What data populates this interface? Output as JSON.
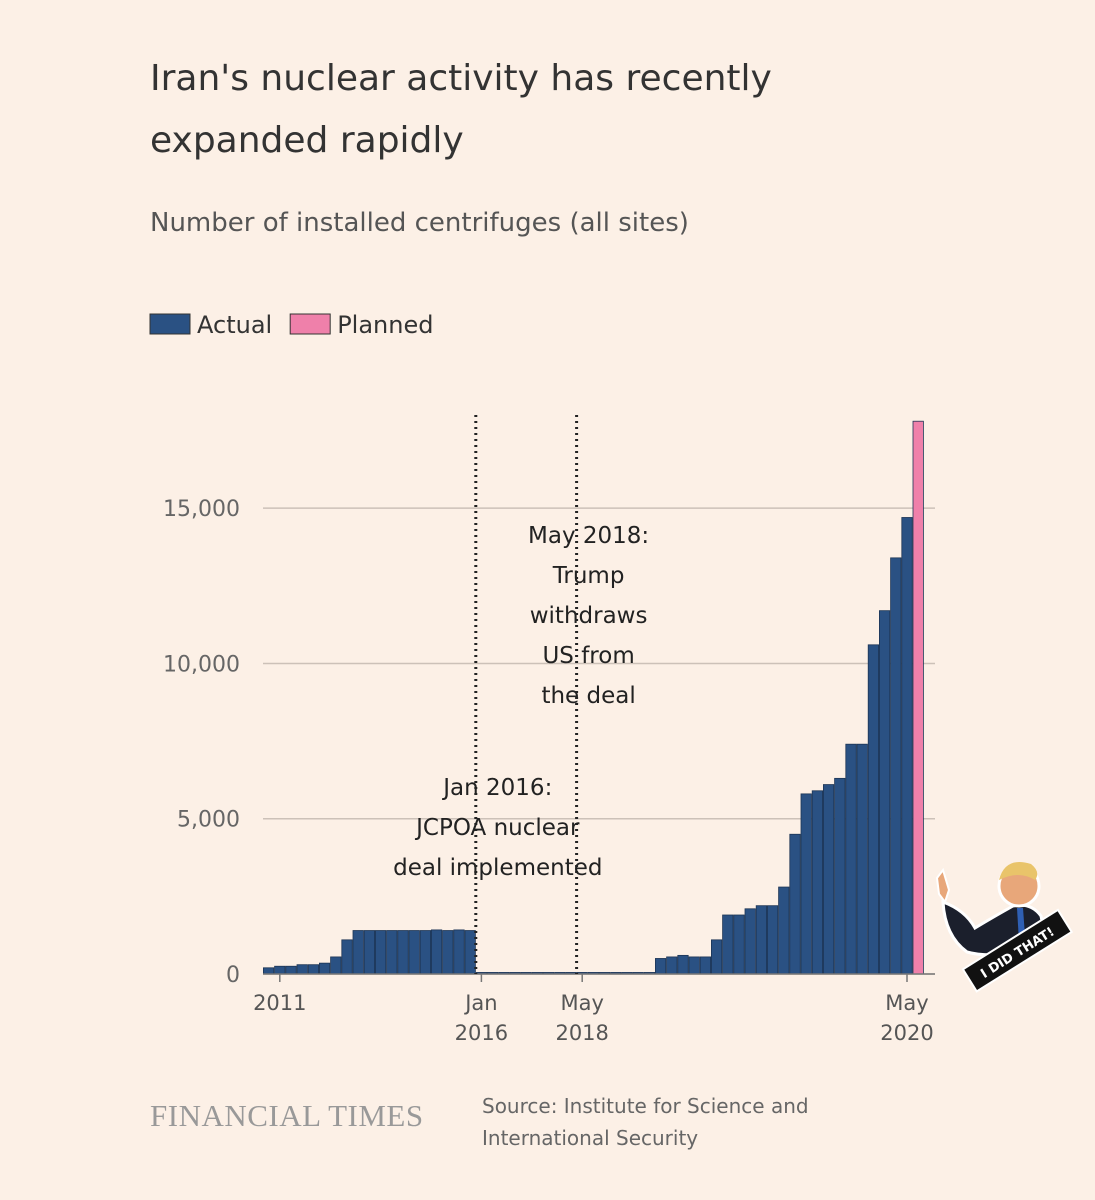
{
  "chart_data": {
    "type": "bar",
    "title": "Iran's nuclear activity has recently expanded rapidly",
    "subtitle": "Number of installed centrifuges (all sites)",
    "categories": [
      null,
      "2011",
      null,
      null,
      null,
      null,
      null,
      null,
      null,
      null,
      null,
      null,
      null,
      null,
      null,
      null,
      null,
      null,
      null,
      "Jan 2016",
      null,
      null,
      null,
      null,
      null,
      null,
      null,
      null,
      "May 2018",
      null,
      null,
      null,
      null,
      null,
      null,
      null,
      null,
      null,
      null,
      null,
      null,
      null,
      null,
      null,
      null,
      null,
      null,
      null,
      null,
      null,
      null,
      null,
      null,
      null,
      null,
      null,
      null,
      "May 2020",
      null
    ],
    "series": [
      {
        "name": "Actual",
        "color": "#2a5183",
        "values": [
          200,
          250,
          250,
          300,
          300,
          350,
          550,
          1100,
          1400,
          1400,
          1400,
          1400,
          1400,
          1400,
          1400,
          1420,
          1400,
          1420,
          1400,
          50,
          50,
          50,
          50,
          50,
          50,
          50,
          50,
          50,
          50,
          50,
          50,
          50,
          50,
          50,
          50,
          500,
          550,
          600,
          550,
          550,
          1100,
          1900,
          1900,
          2100,
          2200,
          2200,
          2800,
          4500,
          5800,
          5900,
          6100,
          6300,
          7400,
          7400,
          10600,
          11700,
          13400,
          14700,
          null
        ]
      },
      {
        "name": "Planned",
        "color": "#ef80aa",
        "values": [
          null,
          null,
          null,
          null,
          null,
          null,
          null,
          null,
          null,
          null,
          null,
          null,
          null,
          null,
          null,
          null,
          null,
          null,
          null,
          null,
          null,
          null,
          null,
          null,
          null,
          null,
          null,
          null,
          null,
          null,
          null,
          null,
          null,
          null,
          null,
          null,
          null,
          null,
          null,
          null,
          null,
          null,
          null,
          null,
          null,
          null,
          null,
          null,
          null,
          null,
          null,
          null,
          null,
          null,
          null,
          null,
          null,
          null,
          17800
        ]
      }
    ],
    "ylim": [
      0,
      18000
    ],
    "yticks": [
      0,
      {
        "value": 5000,
        "label": "5,000"
      },
      {
        "value": 10000,
        "label": "10,000"
      },
      {
        "value": 15000,
        "label": "15,000"
      }
    ],
    "grid": true,
    "annotations": [
      {
        "at": "Jan 2016",
        "text": "Jan 2016:\nJCPOA nuclear\ndeal implemented"
      },
      {
        "at": "May 2018",
        "text": "May 2018:\nTrump\nwithdraws\nUS from\nthe deal"
      }
    ]
  },
  "footer": {
    "logo": "FINANCIAL TIMES",
    "source": "Source: Institute for Science and International Security"
  },
  "sticker": {
    "text": "I DID THAT!"
  }
}
